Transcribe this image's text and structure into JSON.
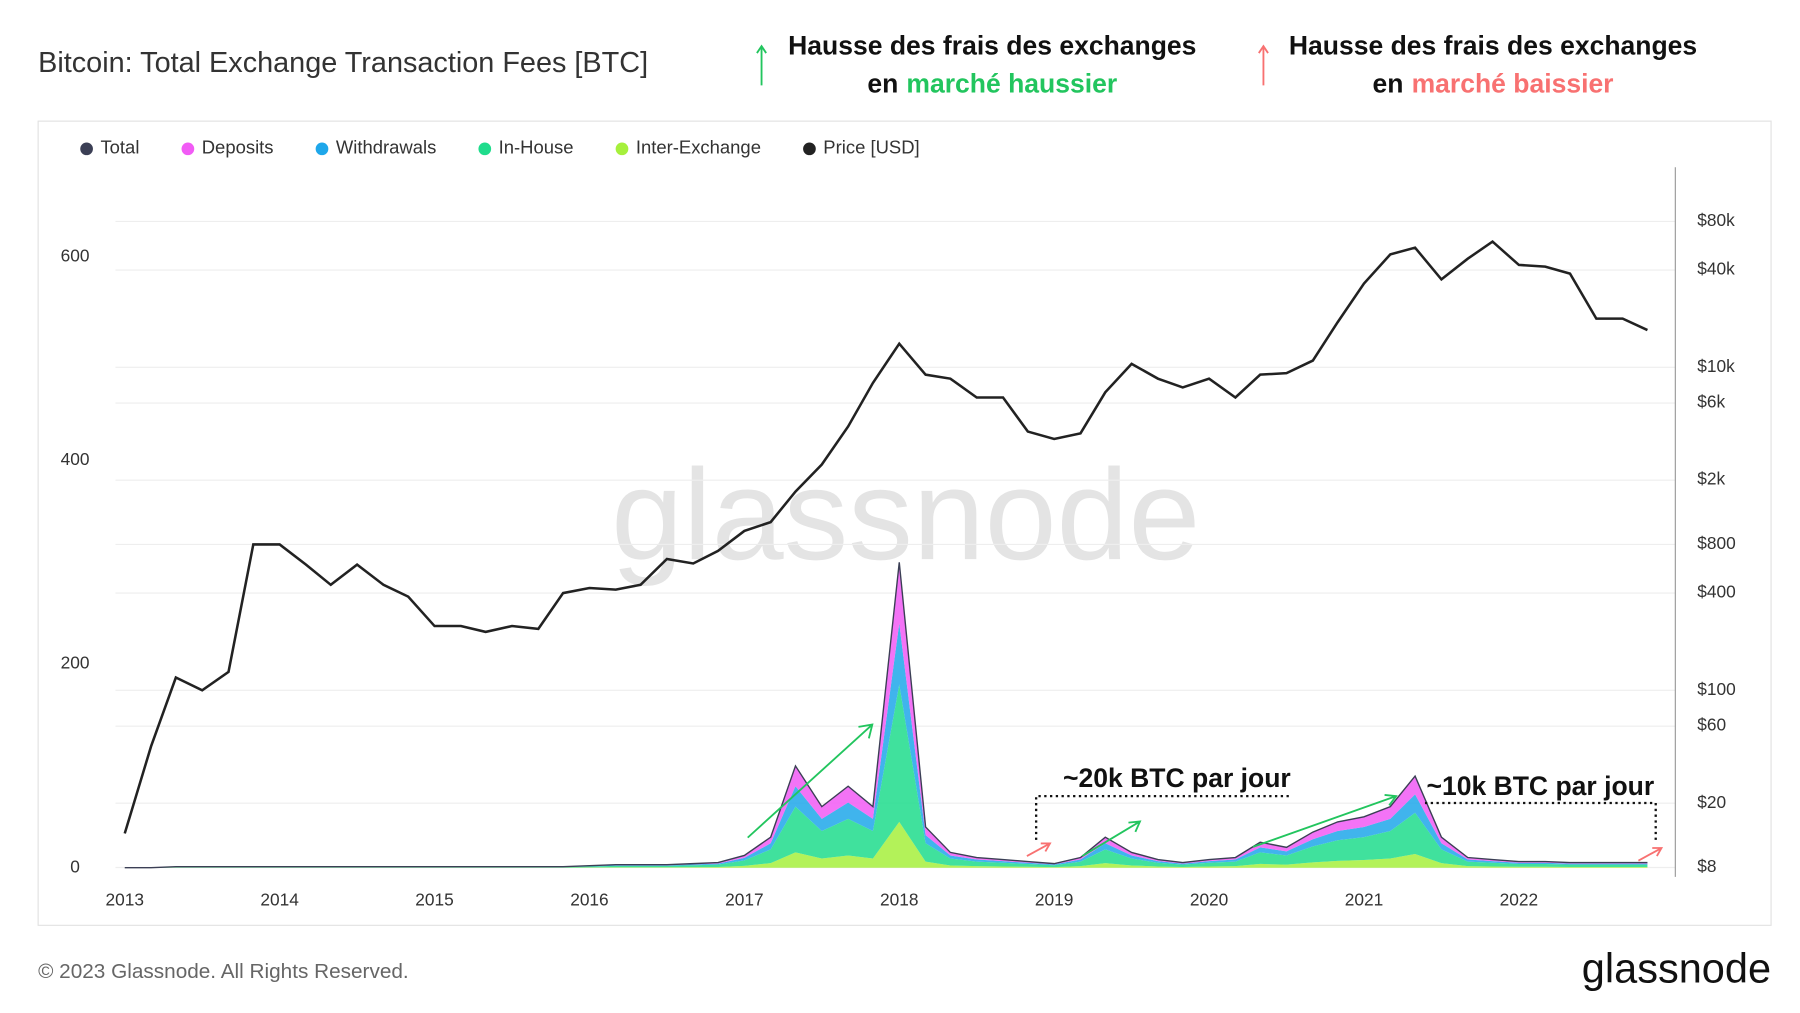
{
  "chart_data": {
    "type": "area",
    "title": "Bitcoin: Total Exchange Transaction Fees [BTC]",
    "header_notes": [
      {
        "line1": "Hausse des frais des exchanges",
        "prefix": "en",
        "highlight": "marché haussier",
        "color": "#22c55e"
      },
      {
        "line1": "Hausse des frais des exchanges",
        "prefix": "en",
        "highlight": "marché baissier",
        "color": "#f87171"
      }
    ],
    "annotations": [
      "~20k BTC par jour",
      "~10k BTC par jour"
    ],
    "watermark": "glassnode",
    "x": [
      2013.0,
      2013.17,
      2013.33,
      2013.5,
      2013.67,
      2013.83,
      2014.0,
      2014.17,
      2014.33,
      2014.5,
      2014.67,
      2014.83,
      2015.0,
      2015.17,
      2015.33,
      2015.5,
      2015.67,
      2015.83,
      2016.0,
      2016.17,
      2016.33,
      2016.5,
      2016.67,
      2016.83,
      2017.0,
      2017.17,
      2017.33,
      2017.5,
      2017.67,
      2017.83,
      2018.0,
      2018.17,
      2018.33,
      2018.5,
      2018.67,
      2018.83,
      2019.0,
      2019.17,
      2019.33,
      2019.5,
      2019.67,
      2019.83,
      2020.0,
      2020.17,
      2020.33,
      2020.5,
      2020.67,
      2020.83,
      2021.0,
      2021.17,
      2021.33,
      2021.5,
      2021.67,
      2021.83,
      2022.0,
      2022.17,
      2022.33,
      2022.5,
      2022.67,
      2022.83
    ],
    "xlim": [
      2012.94,
      2023.01
    ],
    "xticks": [
      2013,
      2014,
      2015,
      2016,
      2017,
      2018,
      2019,
      2020,
      2021,
      2022
    ],
    "ylim": [
      -9,
      688
    ],
    "yticks": [
      0,
      200,
      400,
      600
    ],
    "y2lim": [
      7,
      173000
    ],
    "y2log": true,
    "y2ticks": [
      {
        "value": 8,
        "label": "$8"
      },
      {
        "value": 20,
        "label": "$20"
      },
      {
        "value": 60,
        "label": "$60"
      },
      {
        "value": 100,
        "label": "$100"
      },
      {
        "value": 400,
        "label": "$400"
      },
      {
        "value": 800,
        "label": "$800"
      },
      {
        "value": 2000,
        "label": "$2k"
      },
      {
        "value": 6000,
        "label": "$6k"
      },
      {
        "value": 10000,
        "label": "$10k"
      },
      {
        "value": 40000,
        "label": "$40k"
      },
      {
        "value": 80000,
        "label": "$80k"
      }
    ],
    "grid": true,
    "series": [
      {
        "name": "Total",
        "kind": "line",
        "color": "#3b3f55",
        "values": [
          0,
          0,
          1,
          1,
          1,
          1,
          1,
          1,
          1,
          1,
          1,
          1,
          1,
          1,
          1,
          1,
          1,
          1,
          2,
          3,
          3,
          3,
          4,
          5,
          12,
          30,
          100,
          60,
          80,
          60,
          300,
          40,
          15,
          10,
          8,
          6,
          4,
          10,
          30,
          15,
          8,
          5,
          8,
          10,
          25,
          20,
          35,
          45,
          50,
          60,
          90,
          30,
          10,
          8,
          6,
          6,
          5,
          5,
          5,
          5
        ]
      },
      {
        "name": "Deposits",
        "kind": "area",
        "color": "#f15bf5",
        "values": [
          0,
          0,
          0.2,
          0.2,
          0.2,
          0.2,
          0.2,
          0.2,
          0.2,
          0.2,
          0.2,
          0.2,
          0.2,
          0.2,
          0.2,
          0.2,
          0.2,
          0.2,
          0.4,
          0.6,
          0.6,
          0.6,
          0.8,
          1,
          2.4,
          6,
          20,
          12,
          16,
          12,
          60,
          8,
          3,
          2,
          1.6,
          1.2,
          0.8,
          2,
          6,
          3,
          1.6,
          1,
          1.6,
          2,
          5,
          4,
          7,
          9,
          10,
          12,
          18,
          6,
          2,
          1.6,
          1.2,
          1.2,
          1,
          1,
          1,
          1
        ]
      },
      {
        "name": "Withdrawals",
        "kind": "area",
        "color": "#1ea7ea",
        "values": [
          0,
          0,
          0.2,
          0.2,
          0.2,
          0.2,
          0.2,
          0.2,
          0.2,
          0.2,
          0.2,
          0.2,
          0.2,
          0.2,
          0.2,
          0.2,
          0.2,
          0.2,
          0.4,
          0.6,
          0.6,
          0.6,
          0.8,
          1,
          2.4,
          6,
          20,
          12,
          16,
          12,
          60,
          8,
          3,
          2,
          1.6,
          1.2,
          0.8,
          2,
          6,
          3,
          1.6,
          1,
          1.6,
          2,
          5,
          4,
          7,
          9,
          10,
          12,
          18,
          6,
          2,
          1.6,
          1.2,
          1.2,
          1,
          1,
          1,
          1
        ]
      },
      {
        "name": "In-House",
        "kind": "area",
        "color": "#1fdc8c",
        "values": [
          0,
          0,
          0.5,
          0.5,
          0.5,
          0.5,
          0.5,
          0.5,
          0.5,
          0.5,
          0.5,
          0.5,
          0.5,
          0.5,
          0.5,
          0.5,
          0.5,
          0.5,
          0.9,
          1.4,
          1.4,
          1.4,
          1.8,
          2.3,
          5.4,
          13.5,
          45,
          27,
          36,
          27,
          135,
          18,
          6.8,
          4.5,
          3.6,
          2.7,
          1.8,
          4.5,
          13.5,
          6.8,
          3.6,
          2.3,
          3.6,
          4.5,
          11.3,
          9,
          15.8,
          20.3,
          22.5,
          27,
          40.5,
          13.5,
          4.5,
          3.6,
          2.7,
          2.7,
          2.3,
          2.3,
          2.3,
          2.3
        ]
      },
      {
        "name": "Inter-Exchange",
        "kind": "area",
        "color": "#a6f03c",
        "values": [
          0,
          0,
          0.1,
          0.1,
          0.1,
          0.1,
          0.1,
          0.1,
          0.1,
          0.1,
          0.1,
          0.1,
          0.1,
          0.1,
          0.1,
          0.1,
          0.1,
          0.1,
          0.3,
          0.4,
          0.4,
          0.4,
          0.6,
          0.7,
          1.8,
          4.5,
          15,
          9,
          12,
          9,
          45,
          6,
          2.2,
          1.5,
          1.2,
          0.9,
          0.6,
          1.5,
          4.5,
          2.2,
          1.2,
          0.7,
          1.2,
          1.5,
          3.7,
          3,
          5.2,
          6.7,
          7.5,
          9,
          13.5,
          4.5,
          1.5,
          1.2,
          0.9,
          0.9,
          0.7,
          0.7,
          0.7,
          0.7
        ]
      },
      {
        "name": "Price [USD]",
        "kind": "line",
        "axis": "y2",
        "color": "#222222",
        "values": [
          13,
          45,
          120,
          100,
          130,
          800,
          800,
          600,
          450,
          600,
          450,
          380,
          250,
          250,
          230,
          250,
          240,
          400,
          430,
          420,
          450,
          650,
          610,
          730,
          970,
          1100,
          1700,
          2500,
          4300,
          8000,
          14000,
          9000,
          8500,
          6500,
          6500,
          4000,
          3600,
          3900,
          7000,
          10500,
          8500,
          7500,
          8500,
          6500,
          9000,
          9200,
          11000,
          19000,
          33000,
          50000,
          55000,
          35000,
          47000,
          60000,
          43000,
          42000,
          38000,
          20000,
          20000,
          17000
        ]
      }
    ]
  },
  "footer": {
    "copyright": "© 2023 Glassnode. All Rights Reserved.",
    "logo": "glassnode"
  }
}
